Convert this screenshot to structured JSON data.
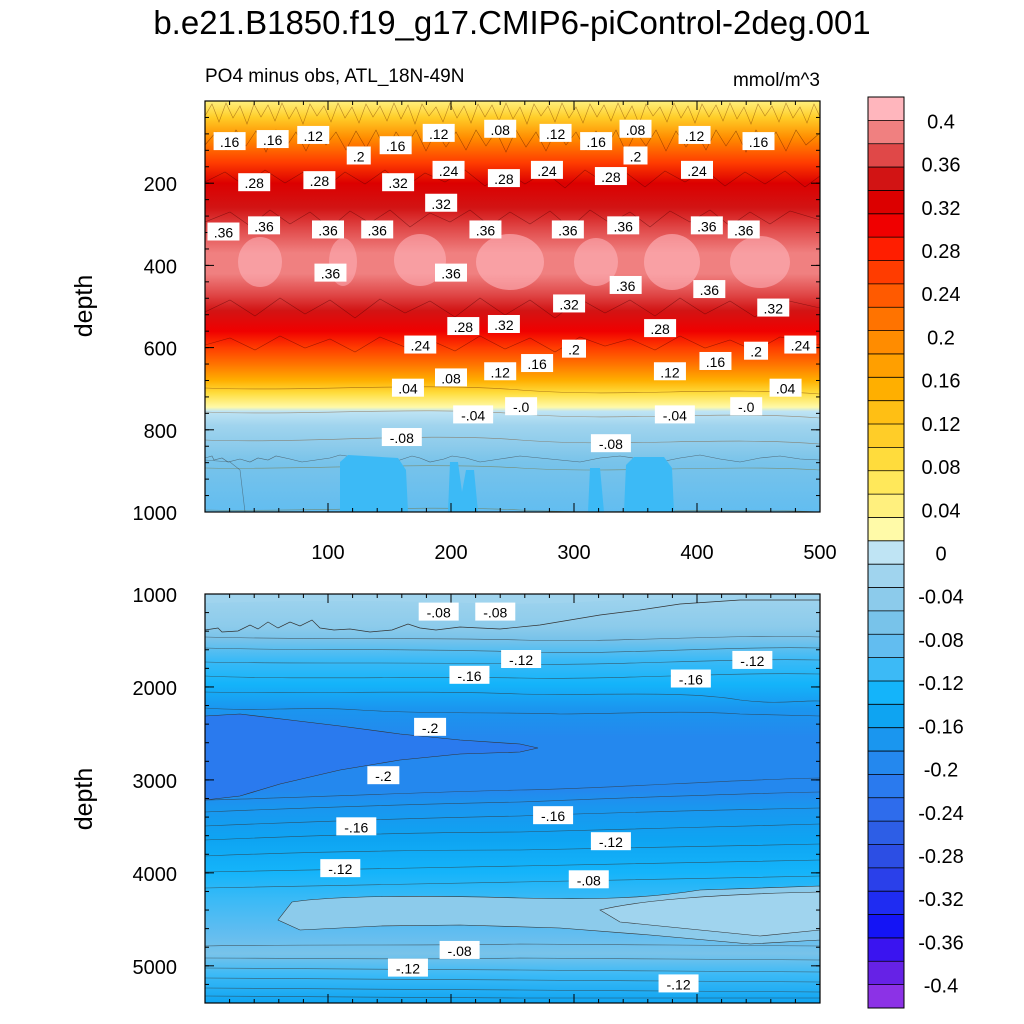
{
  "title": "b.e21.B1850.f19_g17.CMIP6-piControl-2deg.001",
  "chart_data": {
    "type": "heatmap",
    "subtitle_left": "PO4 minus obs, ATL_18N-49N",
    "units": "mmol/m^3",
    "x_range": [
      0,
      500
    ],
    "x_ticks": [
      "100",
      "200",
      "300",
      "400",
      "500"
    ],
    "top_panel": {
      "ylabel": "depth",
      "y_range": [
        0,
        1000
      ],
      "y_ticks": [
        "200",
        "400",
        "600",
        "800",
        "1000"
      ],
      "profile": [
        {
          "depth": 20,
          "value": 0.06
        },
        {
          "depth": 80,
          "value": 0.16
        },
        {
          "depth": 150,
          "value": 0.24
        },
        {
          "depth": 220,
          "value": 0.32
        },
        {
          "depth": 300,
          "value": 0.37
        },
        {
          "depth": 380,
          "value": 0.38
        },
        {
          "depth": 450,
          "value": 0.34
        },
        {
          "depth": 520,
          "value": 0.3
        },
        {
          "depth": 580,
          "value": 0.22
        },
        {
          "depth": 640,
          "value": 0.14
        },
        {
          "depth": 700,
          "value": 0.06
        },
        {
          "depth": 750,
          "value": 0.0
        },
        {
          "depth": 790,
          "value": -0.04
        },
        {
          "depth": 850,
          "value": -0.08
        },
        {
          "depth": 1000,
          "value": -0.1
        }
      ],
      "contour_labels": [
        {
          "text": ".16",
          "x": 20,
          "depth": 100
        },
        {
          "text": ".16",
          "x": 55,
          "depth": 95
        },
        {
          "text": ".12",
          "x": 88,
          "depth": 85
        },
        {
          "text": ".2",
          "x": 125,
          "depth": 135
        },
        {
          "text": ".16",
          "x": 155,
          "depth": 110
        },
        {
          "text": ".12",
          "x": 190,
          "depth": 80
        },
        {
          "text": ".08",
          "x": 240,
          "depth": 70
        },
        {
          "text": ".12",
          "x": 285,
          "depth": 80
        },
        {
          "text": ".16",
          "x": 318,
          "depth": 100
        },
        {
          "text": ".08",
          "x": 350,
          "depth": 70
        },
        {
          "text": ".2",
          "x": 350,
          "depth": 135
        },
        {
          "text": ".12",
          "x": 398,
          "depth": 85
        },
        {
          "text": ".16",
          "x": 450,
          "depth": 100
        },
        {
          "text": ".28",
          "x": 40,
          "depth": 200
        },
        {
          "text": ".28",
          "x": 93,
          "depth": 195
        },
        {
          "text": ".32",
          "x": 157,
          "depth": 200
        },
        {
          "text": ".24",
          "x": 198,
          "depth": 170
        },
        {
          "text": ".32",
          "x": 192,
          "depth": 250
        },
        {
          "text": ".28",
          "x": 243,
          "depth": 190
        },
        {
          "text": ".24",
          "x": 278,
          "depth": 170
        },
        {
          "text": ".28",
          "x": 330,
          "depth": 185
        },
        {
          "text": ".24",
          "x": 400,
          "depth": 170
        },
        {
          "text": ".36",
          "x": 15,
          "depth": 320
        },
        {
          "text": ".36",
          "x": 48,
          "depth": 305
        },
        {
          "text": ".36",
          "x": 100,
          "depth": 315
        },
        {
          "text": ".36",
          "x": 140,
          "depth": 315
        },
        {
          "text": ".36",
          "x": 228,
          "depth": 315
        },
        {
          "text": ".36",
          "x": 295,
          "depth": 315
        },
        {
          "text": ".36",
          "x": 340,
          "depth": 305
        },
        {
          "text": ".36",
          "x": 408,
          "depth": 305
        },
        {
          "text": ".36",
          "x": 438,
          "depth": 315
        },
        {
          "text": ".36",
          "x": 102,
          "depth": 420
        },
        {
          "text": ".36",
          "x": 200,
          "depth": 420
        },
        {
          "text": ".36",
          "x": 342,
          "depth": 450
        },
        {
          "text": ".36",
          "x": 410,
          "depth": 460
        },
        {
          "text": ".32",
          "x": 296,
          "depth": 495
        },
        {
          "text": ".32",
          "x": 462,
          "depth": 505
        },
        {
          "text": ".28",
          "x": 210,
          "depth": 550
        },
        {
          "text": ".32",
          "x": 243,
          "depth": 545
        },
        {
          "text": ".28",
          "x": 370,
          "depth": 555
        },
        {
          "text": ".24",
          "x": 175,
          "depth": 595
        },
        {
          "text": ".24",
          "x": 484,
          "depth": 595
        },
        {
          "text": ".2",
          "x": 300,
          "depth": 605
        },
        {
          "text": ".2",
          "x": 448,
          "depth": 610
        },
        {
          "text": ".16",
          "x": 270,
          "depth": 640
        },
        {
          "text": ".16",
          "x": 415,
          "depth": 635
        },
        {
          "text": ".12",
          "x": 240,
          "depth": 660
        },
        {
          "text": ".12",
          "x": 378,
          "depth": 660
        },
        {
          "text": ".08",
          "x": 200,
          "depth": 675
        },
        {
          "text": ".04",
          "x": 165,
          "depth": 700
        },
        {
          "text": ".04",
          "x": 472,
          "depth": 700
        },
        {
          "text": "-.0",
          "x": 257,
          "depth": 745
        },
        {
          "text": "-.0",
          "x": 440,
          "depth": 745
        },
        {
          "text": "-.04",
          "x": 218,
          "depth": 765
        },
        {
          "text": "-.04",
          "x": 382,
          "depth": 765
        },
        {
          "text": "-.08",
          "x": 160,
          "depth": 820
        },
        {
          "text": "-.08",
          "x": 330,
          "depth": 835
        }
      ]
    },
    "bottom_panel": {
      "ylabel": "depth",
      "y_range": [
        1000,
        5400
      ],
      "y_ticks": [
        "1000",
        "2000",
        "3000",
        "4000",
        "5000"
      ],
      "contour_labels": [
        {
          "text": "-.08",
          "x": 190,
          "depth": 1200
        },
        {
          "text": "-.08",
          "x": 236,
          "depth": 1200
        },
        {
          "text": "-.12",
          "x": 257,
          "depth": 1710
        },
        {
          "text": "-.12",
          "x": 445,
          "depth": 1720
        },
        {
          "text": "-.16",
          "x": 215,
          "depth": 1880
        },
        {
          "text": "-.16",
          "x": 395,
          "depth": 1920
        },
        {
          "text": "-.2",
          "x": 183,
          "depth": 2440
        },
        {
          "text": "-.2",
          "x": 145,
          "depth": 2960
        },
        {
          "text": "-.16",
          "x": 123,
          "depth": 3510
        },
        {
          "text": "-.16",
          "x": 283,
          "depth": 3390
        },
        {
          "text": "-.12",
          "x": 330,
          "depth": 3670
        },
        {
          "text": "-.12",
          "x": 110,
          "depth": 3960
        },
        {
          "text": "-.08",
          "x": 312,
          "depth": 4080
        },
        {
          "text": "-.08",
          "x": 207,
          "depth": 4840
        },
        {
          "text": "-.12",
          "x": 165,
          "depth": 5030
        },
        {
          "text": "-.12",
          "x": 385,
          "depth": 5200
        }
      ]
    },
    "colorbar": {
      "tick_labels": [
        "0.4",
        "0.36",
        "0.32",
        "0.28",
        "0.24",
        "0.2",
        "0.16",
        "0.12",
        "0.08",
        "0.04",
        "0",
        "-0.04",
        "-0.08",
        "-0.12",
        "-0.16",
        "-0.2",
        "-0.24",
        "-0.28",
        "-0.32",
        "-0.36",
        "-0.4"
      ],
      "colors": [
        "#ffb6bd",
        "#f08080",
        "#e04848",
        "#d21414",
        "#dc0000",
        "#f00000",
        "#ff1e00",
        "#ff3c00",
        "#ff5a00",
        "#ff7300",
        "#ff8c00",
        "#ff9f00",
        "#ffaf00",
        "#ffbf14",
        "#ffcd28",
        "#ffdc3c",
        "#ffe85a",
        "#fff07e",
        "#fffaa8",
        "#bfe4f4",
        "#a0d4ee",
        "#8ccbeb",
        "#78c3ea",
        "#62bdf0",
        "#3cbaf6",
        "#14b4fa",
        "#0ea4f2",
        "#1a96ef",
        "#2488ee",
        "#2a7aee",
        "#2e6cec",
        "#2d5ee6",
        "#2c4ee4",
        "#2a40ea",
        "#1f2cf2",
        "#1414f5",
        "#3a14f0",
        "#6622e6",
        "#8c32e6"
      ]
    }
  }
}
